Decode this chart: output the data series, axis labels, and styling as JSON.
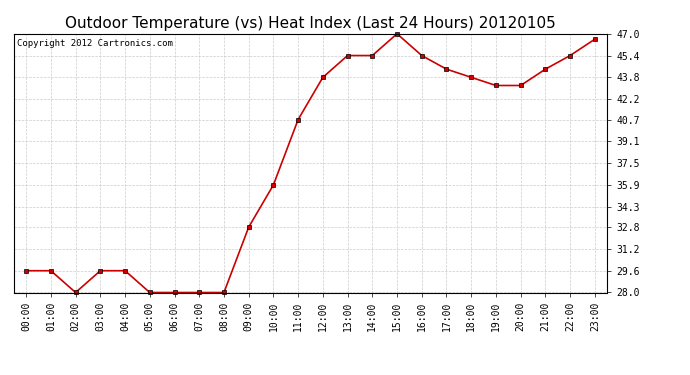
{
  "title": "Outdoor Temperature (vs) Heat Index (Last 24 Hours) 20120105",
  "copyright_text": "Copyright 2012 Cartronics.com",
  "x_labels": [
    "00:00",
    "01:00",
    "02:00",
    "03:00",
    "04:00",
    "05:00",
    "06:00",
    "07:00",
    "08:00",
    "09:00",
    "10:00",
    "11:00",
    "12:00",
    "13:00",
    "14:00",
    "15:00",
    "16:00",
    "17:00",
    "18:00",
    "19:00",
    "20:00",
    "21:00",
    "22:00",
    "23:00"
  ],
  "y_values": [
    29.6,
    29.6,
    28.0,
    29.6,
    29.6,
    28.0,
    28.0,
    28.0,
    28.0,
    32.8,
    35.9,
    40.7,
    43.8,
    45.4,
    45.4,
    47.0,
    45.4,
    44.4,
    43.8,
    43.2,
    43.2,
    44.4,
    45.4,
    46.6
  ],
  "line_color": "#cc0000",
  "marker": "s",
  "marker_color": "#000000",
  "marker_size": 2.5,
  "line_width": 1.2,
  "ylim": [
    28.0,
    47.0
  ],
  "yticks": [
    28.0,
    29.6,
    31.2,
    32.8,
    34.3,
    35.9,
    37.5,
    39.1,
    40.7,
    42.2,
    43.8,
    45.4,
    47.0
  ],
  "background_color": "#ffffff",
  "grid_color": "#cccccc",
  "title_fontsize": 11,
  "copyright_fontsize": 6.5,
  "tick_fontsize": 7,
  "fig_width": 6.9,
  "fig_height": 3.75,
  "dpi": 100
}
